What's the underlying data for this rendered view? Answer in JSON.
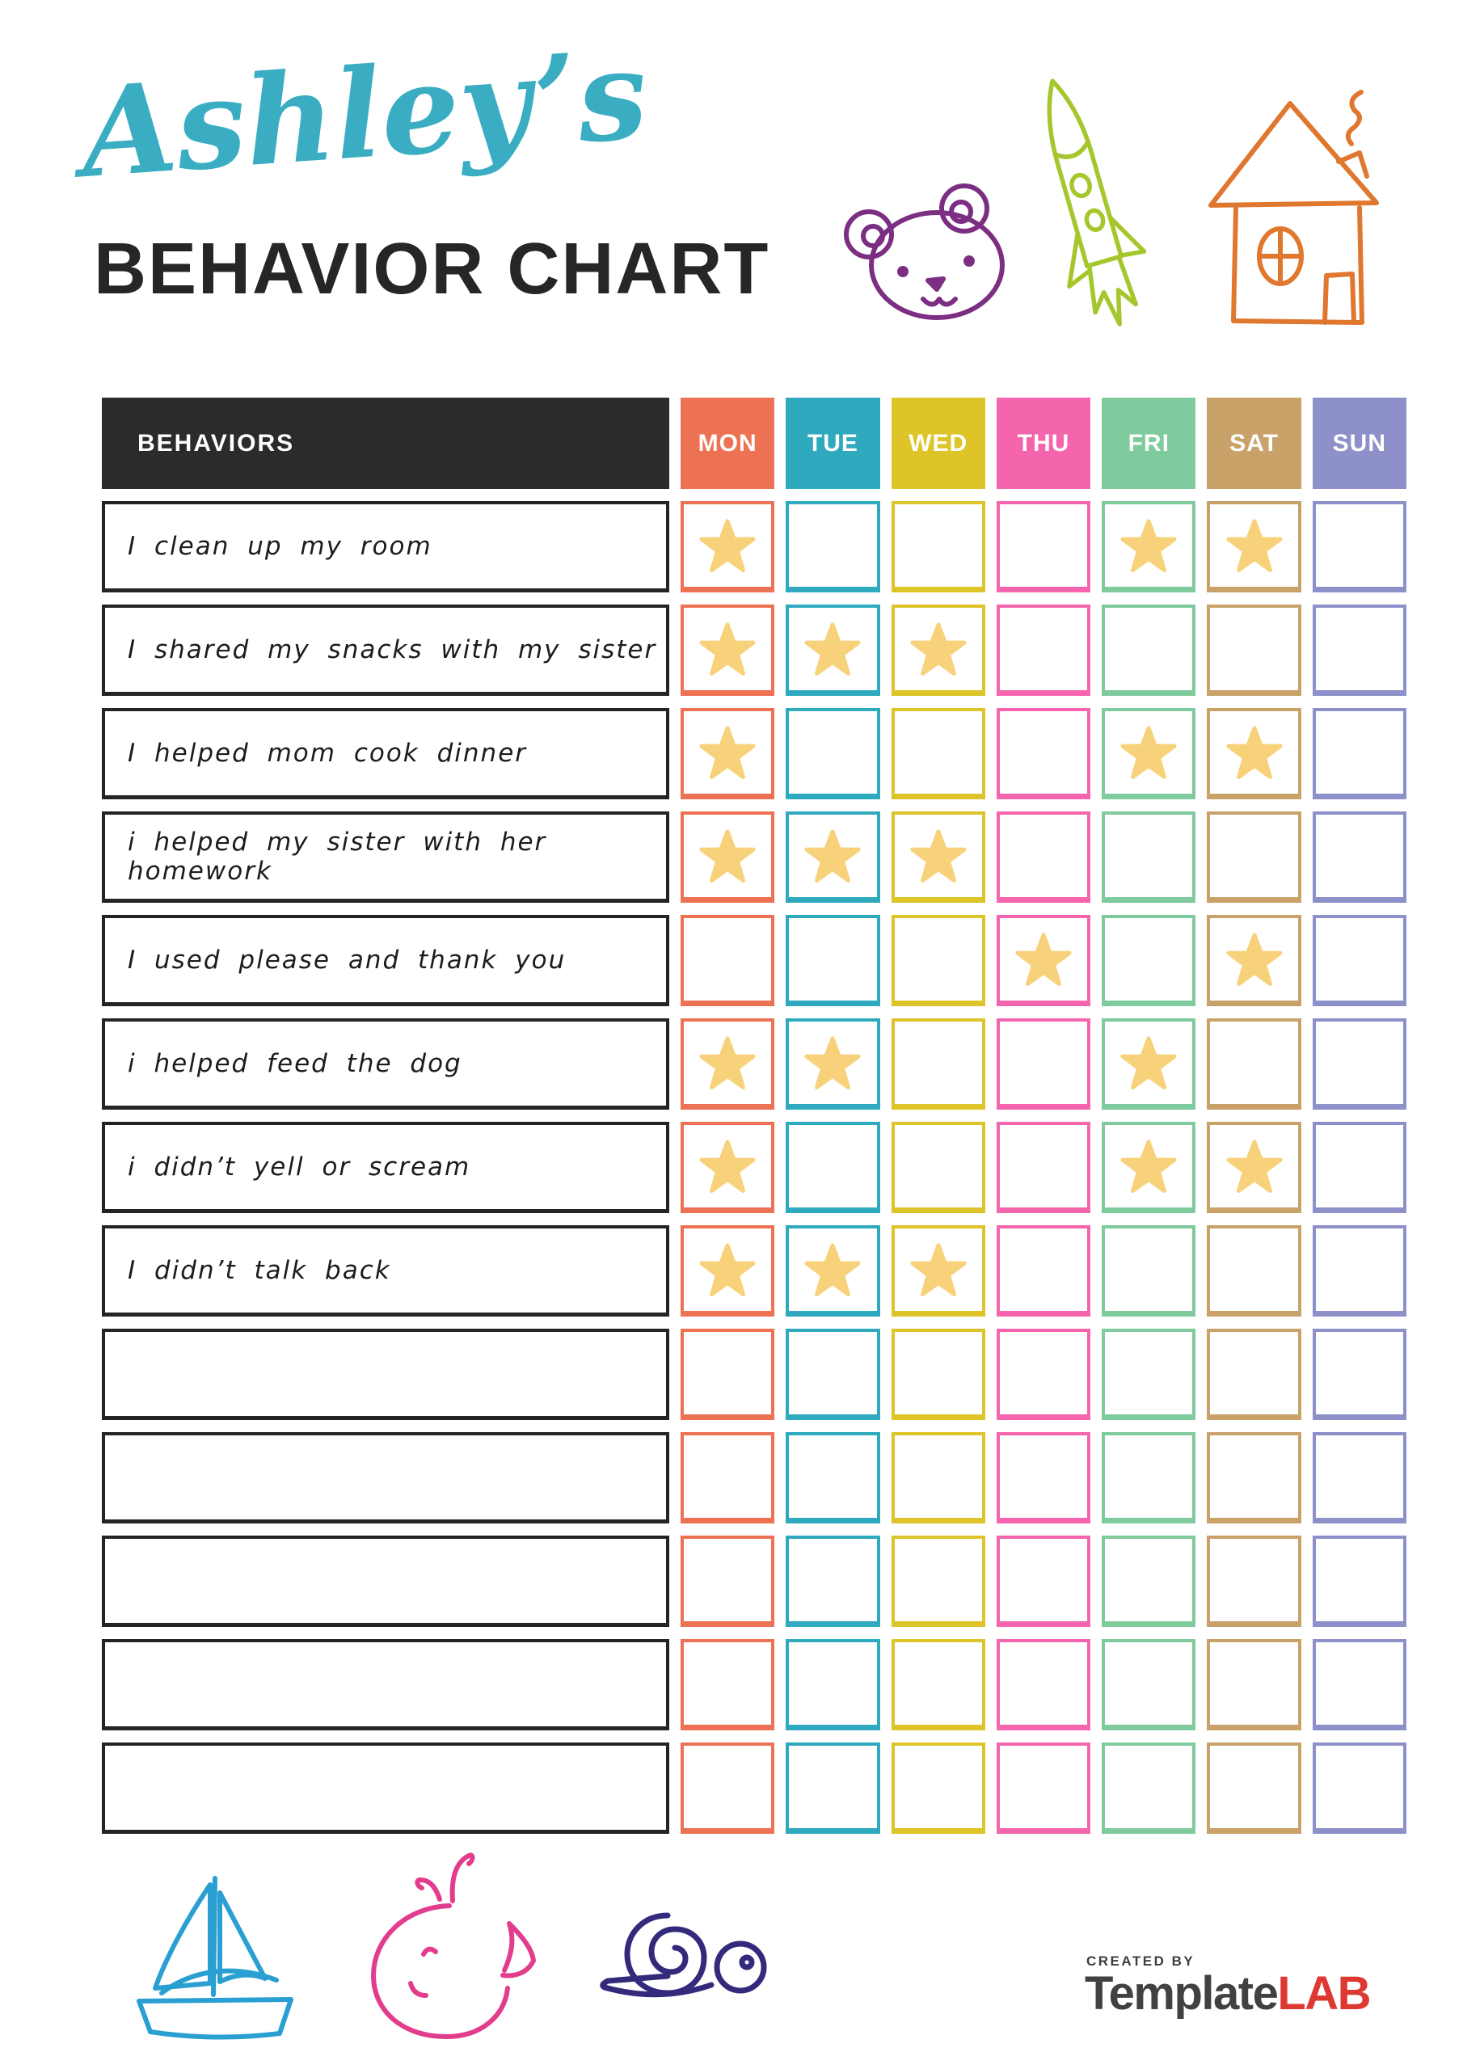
{
  "title": {
    "name": "Ashley’s",
    "subtitle": "BEHAVIOR CHART"
  },
  "header_icons": [
    "bear-icon",
    "rocket-icon",
    "house-icon"
  ],
  "table": {
    "behaviors_header": "BEHAVIORS",
    "days": [
      {
        "label": "MON",
        "color": "#ed7254"
      },
      {
        "label": "TUE",
        "color": "#2fa9bd"
      },
      {
        "label": "WED",
        "color": "#ddc428"
      },
      {
        "label": "THU",
        "color": "#f565ad"
      },
      {
        "label": "FRI",
        "color": "#7fcb9d"
      },
      {
        "label": "SAT",
        "color": "#c9a269"
      },
      {
        "label": "SUN",
        "color": "#8e90c9"
      }
    ],
    "rows": [
      {
        "label": "I clean up my room",
        "stars": [
          "MON",
          "FRI",
          "SAT"
        ]
      },
      {
        "label": "I shared my snacks with my sister",
        "stars": [
          "MON",
          "TUE",
          "WED"
        ]
      },
      {
        "label": "I helped mom cook dinner",
        "stars": [
          "MON",
          "FRI",
          "SAT"
        ]
      },
      {
        "label": "i helped my sister with her homework",
        "stars": [
          "MON",
          "TUE",
          "WED"
        ]
      },
      {
        "label": "I used please and thank you",
        "stars": [
          "THU",
          "SAT"
        ]
      },
      {
        "label": "i helped feed the dog",
        "stars": [
          "MON",
          "TUE",
          "FRI"
        ]
      },
      {
        "label": "i didn’t yell or scream",
        "stars": [
          "MON",
          "FRI",
          "SAT"
        ]
      },
      {
        "label": "I didn’t talk back",
        "stars": [
          "MON",
          "TUE",
          "WED"
        ]
      },
      {
        "label": "",
        "stars": []
      },
      {
        "label": "",
        "stars": []
      },
      {
        "label": "",
        "stars": []
      },
      {
        "label": "",
        "stars": []
      },
      {
        "label": "",
        "stars": []
      }
    ]
  },
  "footer": {
    "decorations": [
      "sailboat-icon",
      "whale-icon",
      "snail-icon"
    ],
    "logo": {
      "created_by": "CREATED BY",
      "brand_primary": "Template",
      "brand_accent": "LAB"
    }
  },
  "colors": {
    "title_teal": "#3aadc2",
    "heading_black": "#262626",
    "header_bg": "#2b2b2b",
    "row_border": "#242424",
    "star": "#f8d27b",
    "bear": "#7c2f82",
    "rocket": "#a5c72d",
    "house": "#e0772e",
    "sailboat": "#2a9fd1",
    "whale": "#e23d8d",
    "snail": "#342a7c",
    "logo_gray": "#414042",
    "logo_red": "#dd3832"
  }
}
